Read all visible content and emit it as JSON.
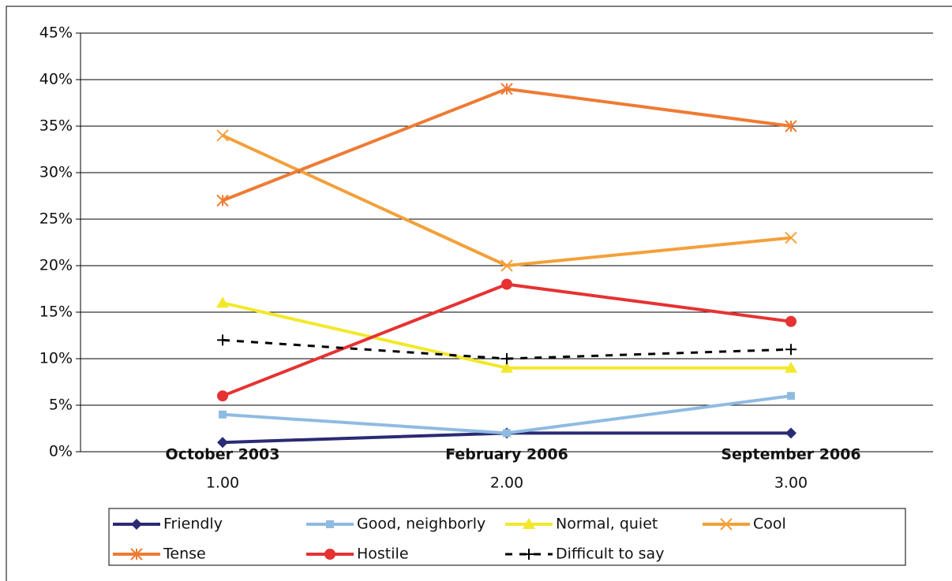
{
  "chart_data": {
    "type": "line",
    "x": [
      1,
      2,
      3
    ],
    "categories": [
      "October 2003",
      "February 2006",
      "September 2006"
    ],
    "xlim": [
      0.5,
      3.5
    ],
    "xticks": [
      {
        "value": 1,
        "label": "1.00"
      },
      {
        "value": 2,
        "label": "2.00"
      },
      {
        "value": 3,
        "label": "3.00"
      }
    ],
    "ylim": [
      0,
      45
    ],
    "yticks": [
      {
        "value": 0,
        "label": "0%"
      },
      {
        "value": 5,
        "label": "5%"
      },
      {
        "value": 10,
        "label": "10%"
      },
      {
        "value": 15,
        "label": "15%"
      },
      {
        "value": 20,
        "label": "20%"
      },
      {
        "value": 25,
        "label": "25%"
      },
      {
        "value": 30,
        "label": "30%"
      },
      {
        "value": 35,
        "label": "35%"
      },
      {
        "value": 40,
        "label": "40%"
      },
      {
        "value": 45,
        "label": "45%"
      }
    ],
    "grid": true,
    "legend": "bottom",
    "series": [
      {
        "name": "Friendly",
        "color": "#2b2a75",
        "marker": "diamond",
        "values": [
          1,
          2,
          2
        ]
      },
      {
        "name": "Good, neighborly",
        "color": "#8fbbe2",
        "marker": "square",
        "values": [
          4,
          2,
          6
        ]
      },
      {
        "name": "Normal, quiet",
        "color": "#f2e82b",
        "marker": "triangle",
        "values": [
          16,
          9,
          9
        ]
      },
      {
        "name": "Cool",
        "color": "#f3a03a",
        "marker": "x",
        "values": [
          34,
          20,
          23
        ]
      },
      {
        "name": "Tense",
        "color": "#ee7b33",
        "marker": "star",
        "values": [
          27,
          39,
          35
        ]
      },
      {
        "name": "Hostile",
        "color": "#e63232",
        "marker": "circle",
        "values": [
          6,
          18,
          14
        ]
      },
      {
        "name": "Difficult to say",
        "color": "#000000",
        "marker": "plus",
        "dash": true,
        "values": [
          12,
          10,
          11
        ]
      }
    ]
  }
}
